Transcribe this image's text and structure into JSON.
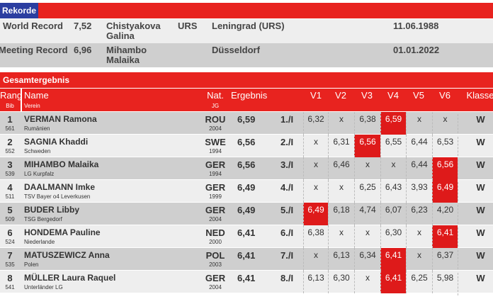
{
  "records": {
    "title": "Rekorde",
    "rows": [
      {
        "label": "World Record",
        "mark": "7,52",
        "name": "Chistyakova Galina",
        "nat": "URS",
        "place": "Leningrad (URS)",
        "date": "11.06.1988"
      },
      {
        "label": "Meeting Record",
        "mark": "6,96",
        "name": "Mihambo Malaika",
        "nat": "",
        "place": "Düsseldorf",
        "date": "01.01.2022"
      }
    ]
  },
  "results": {
    "title": "Gesamtergebnis",
    "headers": {
      "rang": "Rang",
      "bib": "Bib",
      "name": "Name",
      "verein": "Verein",
      "nat": "Nat.",
      "jg": "JG",
      "ergebnis": "Ergebnis",
      "v1": "V1",
      "v2": "V2",
      "v3": "V3",
      "v4": "V4",
      "v5": "V5",
      "v6": "V6",
      "klasse": "Klasse"
    },
    "rows": [
      {
        "rang": "1",
        "bib": "561",
        "name": "VERMAN Ramona",
        "verein": "Rumänien",
        "nat": "ROU",
        "jg": "2004",
        "result": "6,59",
        "place": "1./I",
        "attempts": [
          "6,32",
          "x",
          "6,38",
          "6,59",
          "x",
          "x"
        ],
        "best": 4,
        "klasse": "W"
      },
      {
        "rang": "2",
        "bib": "552",
        "name": "SAGNIA Khaddi",
        "verein": "Schweden",
        "nat": "SWE",
        "jg": "1994",
        "result": "6,56",
        "place": "2./I",
        "attempts": [
          "x",
          "6,31",
          "6,56",
          "6,55",
          "6,44",
          "6,53"
        ],
        "best": 3,
        "klasse": "W"
      },
      {
        "rang": "3",
        "bib": "539",
        "name": "MIHAMBO Malaika",
        "verein": "LG Kurpfalz",
        "nat": "GER",
        "jg": "1994",
        "result": "6,56",
        "place": "3./I",
        "attempts": [
          "x",
          "6,46",
          "x",
          "x",
          "6,44",
          "6,56"
        ],
        "best": 6,
        "klasse": "W"
      },
      {
        "rang": "4",
        "bib": "511",
        "name": "DAALMANN Imke",
        "verein": "TSV Bayer o4 Leverkusen",
        "nat": "GER",
        "jg": "1999",
        "result": "6,49",
        "place": "4./I",
        "attempts": [
          "x",
          "x",
          "6,25",
          "6,43",
          "3,93",
          "6,49"
        ],
        "best": 6,
        "klasse": "W"
      },
      {
        "rang": "5",
        "bib": "509",
        "name": "BUDER Libby",
        "verein": "TSG Bergedorf",
        "nat": "GER",
        "jg": "2004",
        "result": "6,49",
        "place": "5./I",
        "attempts": [
          "6,49",
          "6,18",
          "4,74",
          "6,07",
          "6,23",
          "4,20"
        ],
        "best": 1,
        "klasse": "W"
      },
      {
        "rang": "6",
        "bib": "524",
        "name": "HONDEMA Pauline",
        "verein": "Niederlande",
        "nat": "NED",
        "jg": "2000",
        "result": "6,41",
        "place": "6./I",
        "attempts": [
          "6,38",
          "x",
          "x",
          "6,30",
          "x",
          "6,41"
        ],
        "best": 6,
        "klasse": "W"
      },
      {
        "rang": "7",
        "bib": "535",
        "name": "MATUSZEWICZ Anna",
        "verein": "Polen",
        "nat": "POL",
        "jg": "2003",
        "result": "6,41",
        "place": "7./I",
        "attempts": [
          "x",
          "6,13",
          "6,34",
          "6,41",
          "x",
          "6,37"
        ],
        "best": 4,
        "klasse": "W"
      },
      {
        "rang": "8",
        "bib": "541",
        "name": "MÜLLER Laura Raquel",
        "verein": "Unterländer LG",
        "nat": "GER",
        "jg": "2004",
        "result": "6,41",
        "place": "8./I",
        "attempts": [
          "6,13",
          "6,30",
          "x",
          "6,41",
          "6,25",
          "5,98"
        ],
        "best": 4,
        "klasse": "W"
      }
    ]
  },
  "colors": {
    "accent": "#e8231f",
    "best": "#de1a1a",
    "blue": "#2b3ea0"
  }
}
